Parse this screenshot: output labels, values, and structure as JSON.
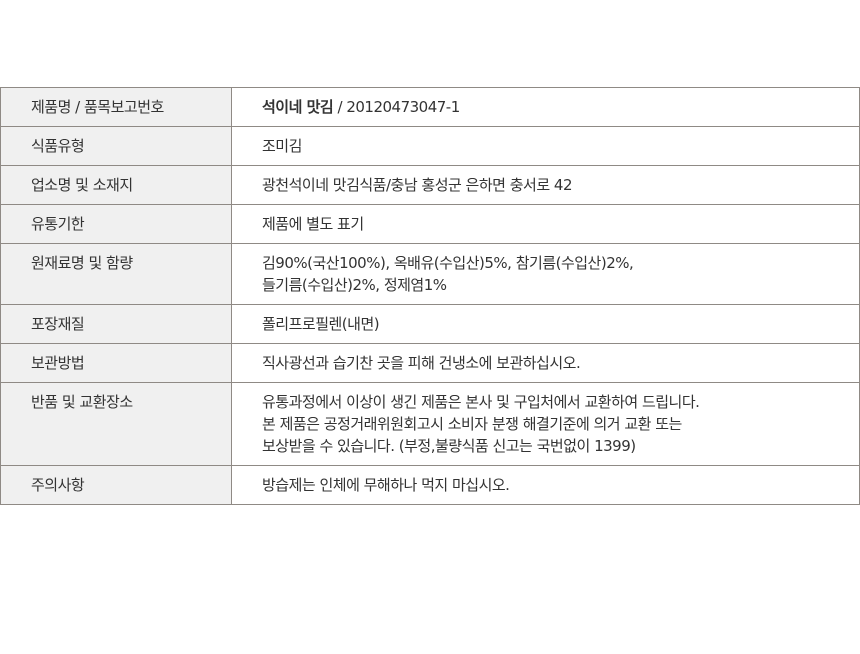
{
  "rows": [
    {
      "label": "제품명 / 품목보고번호",
      "value_bold": "석이네 맛김",
      "value": " / 20120473047-1"
    },
    {
      "label": "식품유형",
      "value": "조미김"
    },
    {
      "label": "업소명 및 소재지",
      "value": "광천석이네 맛김식품/충남 홍성군 은하면 충서로 42"
    },
    {
      "label": "유통기한",
      "value": "제품에 별도 표기"
    },
    {
      "label": "원재료명 및 함량",
      "lines": [
        "김90%(국산100%), 옥배유(수입산)5%, 참기름(수입산)2%,",
        "들기름(수입산)2%, 정제염1%"
      ]
    },
    {
      "label": "포장재질",
      "value": "폴리프로필렌(내면)"
    },
    {
      "label": "보관방법",
      "value": "직사광선과 습기찬 곳을 피해 건냉소에 보관하십시오."
    },
    {
      "label": "반품 및 교환장소",
      "lines": [
        "유통과정에서 이상이 생긴 제품은 본사 및 구입처에서 교환하여 드립니다.",
        "본 제품은 공정거래위원회고시 소비자 분쟁 해결기준에 의거 교환 또는",
        "보상받을 수 있습니다. (부정,불량식품 신고는 국번없이 1399)"
      ]
    },
    {
      "label": "주의사항",
      "value": "방습제는 인체에 무해하나 먹지 마십시오."
    }
  ]
}
